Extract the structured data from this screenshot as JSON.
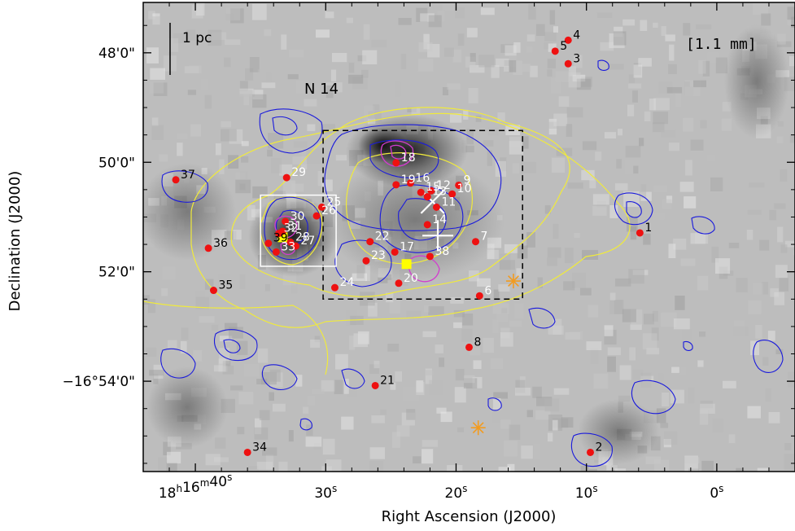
{
  "chart_data": {
    "type": "scatter",
    "title": "",
    "xlabel": "Right Ascension (J2000)",
    "ylabel": "Declination (J2000)",
    "xlim_sec": [
      44,
      -6
    ],
    "ylim_min": [
      47.08,
      55.65
    ],
    "x_ticks": [
      {
        "v": 40,
        "label_h": "18",
        "label_h_sup": "h",
        "label_m": "16",
        "label_m_sup": "m",
        "label_s": "40",
        "label_s_sup": "s"
      },
      {
        "v": 30,
        "label_s": "30",
        "label_s_sup": "s"
      },
      {
        "v": 20,
        "label_s": "20",
        "label_s_sup": "s"
      },
      {
        "v": 10,
        "label_s": "10",
        "label_s_sup": "s"
      },
      {
        "v": 0,
        "label_s": "0",
        "label_s_sup": "s"
      }
    ],
    "y_ticks": [
      {
        "v": 48,
        "label": "48'0\""
      },
      {
        "v": 50,
        "label": "50'0\""
      },
      {
        "v": 52,
        "label": "52'0\""
      },
      {
        "v": 54,
        "label": "−16°54'0\""
      }
    ],
    "annotations": {
      "region_name": "N 14",
      "band": "[1.1 mm]",
      "scalebar": "1 pc"
    },
    "sources": [
      {
        "id": "1",
        "ra_s": 5.9,
        "dec_m": 51.29
      },
      {
        "id": "2",
        "ra_s": 9.7,
        "dec_m": 55.3
      },
      {
        "id": "3",
        "ra_s": 11.4,
        "dec_m": 48.2
      },
      {
        "id": "4",
        "ra_s": 11.4,
        "dec_m": 47.77
      },
      {
        "id": "5",
        "ra_s": 12.4,
        "dec_m": 47.97
      },
      {
        "id": "6",
        "ra_s": 18.2,
        "dec_m": 52.44
      },
      {
        "id": "7",
        "ra_s": 18.5,
        "dec_m": 51.45
      },
      {
        "id": "8",
        "ra_s": 19.0,
        "dec_m": 53.38
      },
      {
        "id": "9",
        "ra_s": 19.8,
        "dec_m": 50.42
      },
      {
        "id": "10",
        "ra_s": 20.3,
        "dec_m": 50.58
      },
      {
        "id": "11",
        "ra_s": 21.5,
        "dec_m": 50.82
      },
      {
        "id": "12",
        "ra_s": 21.9,
        "dec_m": 50.52
      },
      {
        "id": "13",
        "ra_s": 22.2,
        "dec_m": 50.63
      },
      {
        "id": "14",
        "ra_s": 22.2,
        "dec_m": 51.14
      },
      {
        "id": "15",
        "ra_s": 22.7,
        "dec_m": 50.55
      },
      {
        "id": "16",
        "ra_s": 23.5,
        "dec_m": 50.38
      },
      {
        "id": "17",
        "ra_s": 24.7,
        "dec_m": 51.64
      },
      {
        "id": "18",
        "ra_s": 24.6,
        "dec_m": 50.01
      },
      {
        "id": "19",
        "ra_s": 24.6,
        "dec_m": 50.41
      },
      {
        "id": "20",
        "ra_s": 24.4,
        "dec_m": 52.21
      },
      {
        "id": "21",
        "ra_s": 26.2,
        "dec_m": 54.08
      },
      {
        "id": "22",
        "ra_s": 26.6,
        "dec_m": 51.45
      },
      {
        "id": "23",
        "ra_s": 26.9,
        "dec_m": 51.8
      },
      {
        "id": "24",
        "ra_s": 29.3,
        "dec_m": 52.29
      },
      {
        "id": "25",
        "ra_s": 30.3,
        "dec_m": 50.82
      },
      {
        "id": "26",
        "ra_s": 30.7,
        "dec_m": 50.98
      },
      {
        "id": "27",
        "ra_s": 32.3,
        "dec_m": 51.53
      },
      {
        "id": "28",
        "ra_s": 32.7,
        "dec_m": 51.46
      },
      {
        "id": "29",
        "ra_s": 33.0,
        "dec_m": 50.28
      },
      {
        "id": "30",
        "ra_s": 33.1,
        "dec_m": 51.08
      },
      {
        "id": "31",
        "ra_s": 33.3,
        "dec_m": 51.26
      },
      {
        "id": "32",
        "ra_s": 33.6,
        "dec_m": 51.3
      },
      {
        "id": "33",
        "ra_s": 33.8,
        "dec_m": 51.64
      },
      {
        "id": "34",
        "ra_s": 36.0,
        "dec_m": 55.3
      },
      {
        "id": "35",
        "ra_s": 38.6,
        "dec_m": 52.34
      },
      {
        "id": "36",
        "ra_s": 39.0,
        "dec_m": 51.57
      },
      {
        "id": "37",
        "ra_s": 41.5,
        "dec_m": 50.32
      },
      {
        "id": "38",
        "ra_s": 22.0,
        "dec_m": 51.72
      },
      {
        "id": "39",
        "ra_s": 34.4,
        "dec_m": 51.48
      }
    ],
    "crosses": [
      {
        "ra_s": 21.8,
        "dec_m": 50.72,
        "shape": "x"
      },
      {
        "ra_s": 21.4,
        "dec_m": 51.34,
        "shape": "plus"
      }
    ],
    "yellow_squares": [
      {
        "ra_s": 23.8,
        "dec_m": 51.86
      },
      {
        "ra_s": 33.3,
        "dec_m": 51.37
      }
    ],
    "asterisks": [
      {
        "ra_s": 15.6,
        "dec_m": 52.17
      },
      {
        "ra_s": 18.3,
        "dec_m": 54.85
      }
    ],
    "boxes": [
      {
        "style": "dashed-black",
        "ra_from": 30.2,
        "ra_to": 14.9,
        "dec_from": 49.42,
        "dec_to": 52.5
      },
      {
        "style": "solid-white",
        "ra_from": 35.0,
        "ra_to": 29.2,
        "dec_from": 50.6,
        "dec_to": 51.9
      }
    ],
    "colors": {
      "source_marker": "#ee1111",
      "blue_contour": "#1a1adc",
      "yellow_contour": "#f0ea3c",
      "magenta_contour": "#d23ccf",
      "asterisk": "#f29b1f",
      "square": "#ffff00",
      "cross": "#ffffff"
    }
  }
}
